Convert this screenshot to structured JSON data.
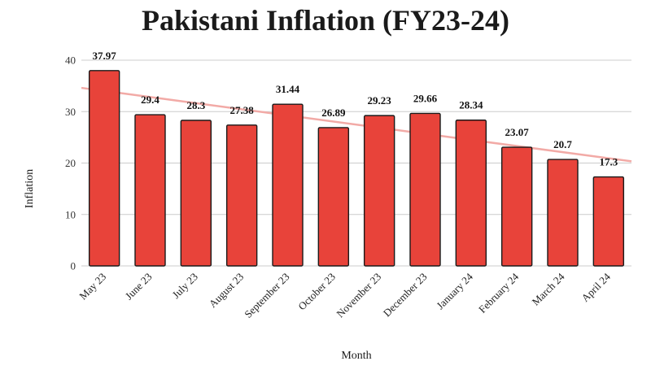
{
  "chart_data": {
    "type": "bar",
    "title": "Pakistani Inflation (FY23-24)",
    "xlabel": "Month",
    "ylabel": "Inflation",
    "categories": [
      "May 23",
      "June 23",
      "July 23",
      "August 23",
      "September 23",
      "October 23",
      "November 23",
      "December 23",
      "January 24",
      "February 24",
      "March 24",
      "April 24"
    ],
    "values": [
      37.97,
      29.4,
      28.3,
      27.38,
      31.44,
      26.89,
      29.23,
      29.66,
      28.34,
      23.07,
      20.7,
      17.3
    ],
    "value_labels": [
      "37.97",
      "29.4",
      "28.3",
      "27.38",
      "31.44",
      "26.89",
      "29.23",
      "29.66",
      "28.34",
      "23.07",
      "20.7",
      "17.3"
    ],
    "ylim": [
      0,
      40
    ],
    "yticks": [
      "0",
      "10",
      "20",
      "30",
      "40"
    ],
    "grid": true,
    "trendline": true,
    "colors": {
      "bar_fill": "#e8433a",
      "bar_stroke": "#1a1a1a",
      "trendline": "#f2aaa6",
      "grid": "#cccccc"
    }
  }
}
